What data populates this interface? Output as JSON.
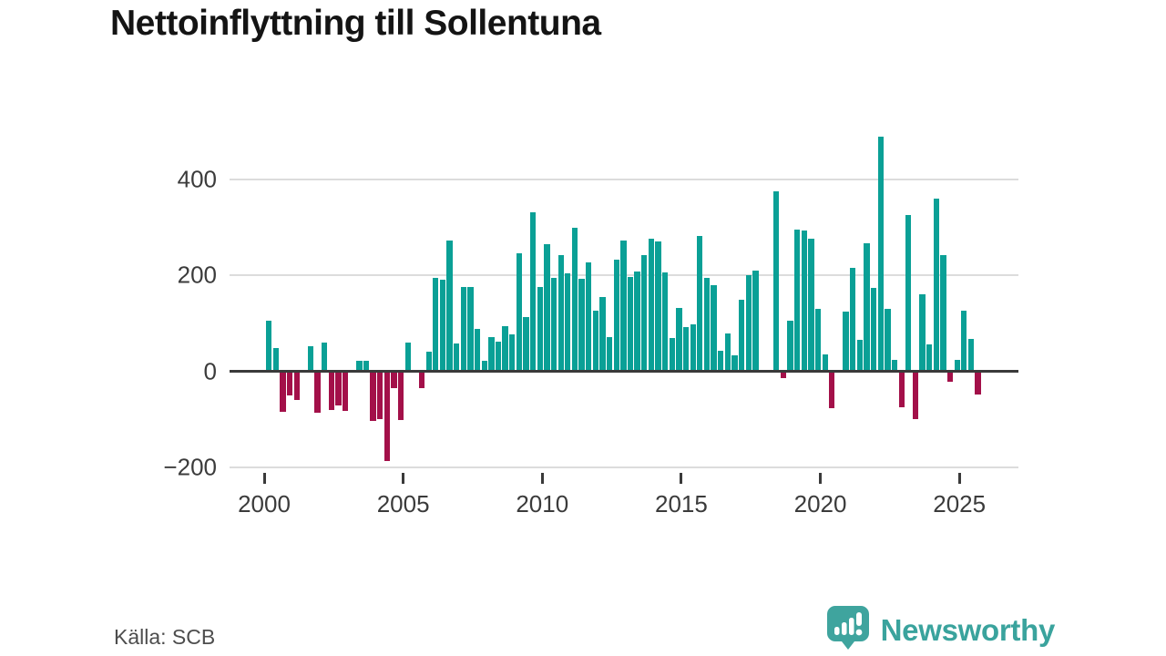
{
  "title": "Nettoinflyttning till Sollentuna",
  "source": "Källa: SCB",
  "logo": {
    "brand": "Newsworthy"
  },
  "colors": {
    "positive": "#0aa096",
    "negative": "#a31049",
    "grid": "#dcdcdc",
    "axis": "#3a3a3a",
    "tick_text": "#3b3b3b",
    "title_text": "#141414",
    "source_text": "#4d4d4d",
    "brand": "#3aa39d"
  },
  "chart_data": {
    "type": "bar",
    "title": "Nettoinflyttning till Sollentuna",
    "frequency": "quarterly",
    "start_period": "2000-Q1",
    "end_period": "2025-Q3",
    "x_tick_years": [
      2000,
      2005,
      2010,
      2015,
      2020,
      2025
    ],
    "y_ticks": [
      400,
      200,
      0,
      -200
    ],
    "y_tick_labels": [
      "400",
      "200",
      "0",
      "−200"
    ],
    "ylim": [
      -210,
      520
    ],
    "grid": true,
    "legend": false,
    "values": [
      106,
      49,
      -82,
      -47,
      -57,
      0,
      52,
      -83,
      59,
      -77,
      -68,
      -80,
      0,
      21,
      21,
      -100,
      -97,
      -183,
      -33,
      -98,
      59,
      0,
      -32,
      41,
      194,
      191,
      272,
      57,
      175,
      175,
      89,
      22,
      71,
      62,
      94,
      76,
      245,
      113,
      330,
      175,
      265,
      194,
      241,
      203,
      299,
      192,
      226,
      127,
      154,
      72,
      232,
      272,
      197,
      208,
      241,
      276,
      270,
      206,
      70,
      131,
      92,
      97,
      281,
      195,
      179,
      43,
      79,
      34,
      148,
      200,
      210,
      0,
      0,
      374,
      -12,
      105,
      295,
      293,
      275,
      130,
      35,
      -74,
      0,
      125,
      216,
      65,
      267,
      174,
      489,
      130,
      23,
      -72,
      325,
      -97,
      161,
      55,
      360,
      242,
      -19,
      23,
      127,
      68,
      -46
    ]
  }
}
